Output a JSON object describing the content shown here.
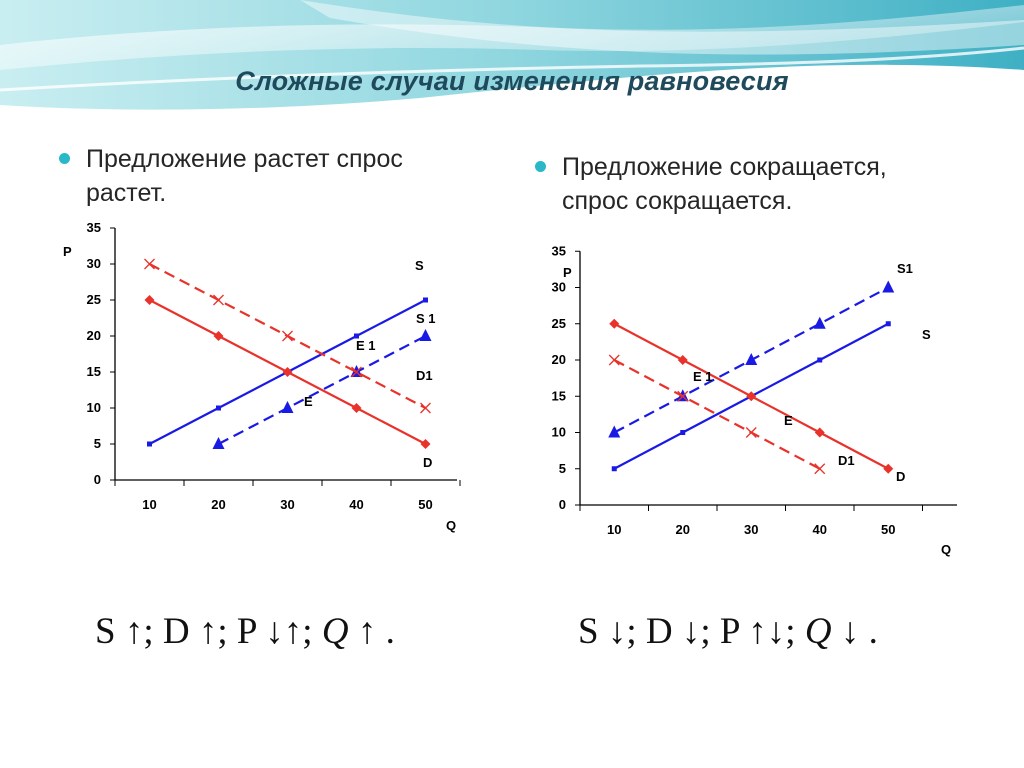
{
  "title": "Сложные случаи изменения равновесия",
  "left": {
    "bullet_line1": "Предложение растет спрос",
    "bullet_line2": "растет.",
    "formula_html": "S ↑; D ↑; P ↓↑; <span class=\"q\">Q</span> ↑ ."
  },
  "right": {
    "bullet_line1": "Предложение сокращается,",
    "bullet_line2": "спрос сокращается.",
    "formula_html": "S ↓; D ↓; P ↑↓; <span class=\"q\">Q</span> ↓ ."
  },
  "colors": {
    "red": "#e8322a",
    "blue": "#1a1ae6",
    "axis": "#000000",
    "title": "#1f4a5c",
    "bullet": "#29b8c8"
  },
  "chart_data": [
    {
      "type": "line",
      "x": [
        10,
        20,
        30,
        40,
        50
      ],
      "xlabel": "Q",
      "ylabel": "P",
      "ylim": [
        0,
        35
      ],
      "yticks": [
        0,
        5,
        10,
        15,
        20,
        25,
        30,
        35
      ],
      "grid": false,
      "legend": "none",
      "series": [
        {
          "name": "S",
          "values": [
            5,
            10,
            15,
            20,
            25
          ],
          "color": "#1a1ae6",
          "dash": false,
          "marker": "square"
        },
        {
          "name": "S 1",
          "values": [
            null,
            5,
            10,
            15,
            20
          ],
          "color": "#1a1ae6",
          "dash": true,
          "marker": "triangle"
        },
        {
          "name": "D",
          "values": [
            25,
            20,
            15,
            10,
            5
          ],
          "color": "#e8322a",
          "dash": false,
          "marker": "diamond"
        },
        {
          "name": "D1",
          "values": [
            30,
            25,
            20,
            15,
            10
          ],
          "color": "#e8322a",
          "dash": true,
          "marker": "x"
        }
      ],
      "annotations": [
        {
          "text": "E",
          "x": 30,
          "y": 15
        },
        {
          "text": "E 1",
          "x": 40,
          "y": 15
        }
      ]
    },
    {
      "type": "line",
      "x": [
        10,
        20,
        30,
        40,
        50
      ],
      "xlabel": "Q",
      "ylabel": "P",
      "ylim": [
        0,
        35
      ],
      "yticks": [
        0,
        5,
        10,
        15,
        20,
        25,
        30,
        35
      ],
      "grid": false,
      "legend": "none",
      "series": [
        {
          "name": "S",
          "values": [
            5,
            10,
            15,
            20,
            25
          ],
          "color": "#1a1ae6",
          "dash": false,
          "marker": "square"
        },
        {
          "name": "S1",
          "values": [
            10,
            15,
            20,
            25,
            30
          ],
          "color": "#1a1ae6",
          "dash": true,
          "marker": "triangle"
        },
        {
          "name": "D",
          "values": [
            25,
            20,
            15,
            10,
            5
          ],
          "color": "#e8322a",
          "dash": false,
          "marker": "diamond"
        },
        {
          "name": "D1",
          "values": [
            20,
            15,
            10,
            5,
            null
          ],
          "color": "#e8322a",
          "dash": true,
          "marker": "x"
        }
      ],
      "annotations": [
        {
          "text": "E",
          "x": 30,
          "y": 15
        },
        {
          "text": "E 1",
          "x": 20,
          "y": 15
        }
      ]
    }
  ]
}
